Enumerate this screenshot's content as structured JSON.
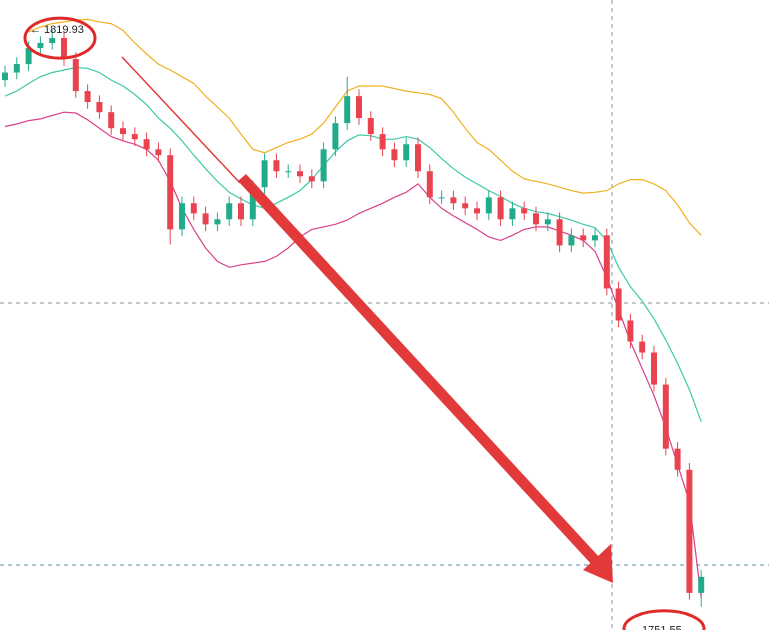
{
  "chart_data": {
    "type": "candlestick",
    "categories": [
      null,
      null,
      null,
      null,
      null,
      null,
      null,
      null,
      null,
      null,
      null,
      null,
      null,
      null,
      null,
      null,
      null,
      null,
      null,
      null,
      null,
      null,
      null,
      null,
      null,
      null,
      null,
      null,
      null,
      null,
      null,
      null,
      null,
      null,
      null,
      null,
      null,
      null,
      null,
      null,
      null,
      null,
      null,
      null,
      null,
      null,
      null,
      null,
      null,
      null,
      null,
      null,
      null,
      null,
      null,
      null,
      null,
      null,
      null,
      null
    ],
    "open": [
      1814.0,
      1814.9,
      1815.9,
      1817.8,
      1818.4,
      1819.0,
      1816.5,
      1812.7,
      1811.4,
      1810.2,
      1808.3,
      1807.6,
      1807.0,
      1805.8,
      1805.1,
      1796.3,
      1799.4,
      1798.2,
      1796.9,
      1797.5,
      1799.4,
      1797.5,
      1801.3,
      1804.5,
      1803.2,
      1803.2,
      1802.6,
      1802.0,
      1805.8,
      1808.9,
      1812.1,
      1809.5,
      1807.6,
      1805.8,
      1804.5,
      1806.4,
      1803.2,
      1800.1,
      1800.1,
      1799.4,
      1798.8,
      1798.2,
      1800.1,
      1797.5,
      1798.8,
      1798.2,
      1796.9,
      1797.5,
      1794.4,
      1795.6,
      1795.0,
      1795.6,
      1789.3,
      1785.5,
      1783.0,
      1781.7,
      1777.9,
      1770.3,
      1767.8,
      1753.2
    ],
    "high": [
      1815.7,
      1816.7,
      1818.6,
      1819.2,
      1819.93,
      1819.8,
      1817.3,
      1813.5,
      1812.2,
      1811.0,
      1809.1,
      1808.4,
      1807.8,
      1806.6,
      1805.9,
      1800.2,
      1800.2,
      1799.0,
      1798.3,
      1800.2,
      1800.2,
      1802.1,
      1805.3,
      1805.3,
      1804.0,
      1804.0,
      1803.4,
      1806.6,
      1809.7,
      1814.4,
      1812.9,
      1810.3,
      1808.4,
      1806.6,
      1807.2,
      1807.2,
      1804.0,
      1800.9,
      1800.9,
      1800.2,
      1799.6,
      1800.9,
      1800.9,
      1799.6,
      1799.6,
      1799.0,
      1798.3,
      1798.3,
      1796.4,
      1796.4,
      1796.4,
      1796.4,
      1790.1,
      1786.3,
      1783.8,
      1782.5,
      1778.7,
      1771.1,
      1768.6,
      1755.9
    ],
    "low": [
      1813.2,
      1814.1,
      1815.1,
      1817.0,
      1817.6,
      1815.7,
      1811.9,
      1810.6,
      1809.4,
      1807.5,
      1806.8,
      1806.2,
      1805.0,
      1804.3,
      1794.5,
      1795.5,
      1797.4,
      1796.1,
      1796.1,
      1796.7,
      1796.7,
      1796.7,
      1800.5,
      1802.4,
      1802.4,
      1801.8,
      1801.2,
      1801.2,
      1805.0,
      1808.1,
      1808.7,
      1806.8,
      1805.0,
      1803.7,
      1803.7,
      1802.4,
      1799.3,
      1799.3,
      1798.6,
      1798.0,
      1797.4,
      1797.4,
      1796.7,
      1796.7,
      1797.4,
      1796.1,
      1796.1,
      1793.6,
      1793.6,
      1794.2,
      1794.2,
      1788.5,
      1784.7,
      1782.2,
      1780.9,
      1777.1,
      1769.5,
      1767.0,
      1752.4,
      1751.55
    ],
    "close": [
      1814.9,
      1815.9,
      1817.8,
      1818.4,
      1819.0,
      1816.5,
      1812.7,
      1811.4,
      1810.2,
      1808.3,
      1807.6,
      1807.0,
      1805.8,
      1805.1,
      1796.3,
      1799.4,
      1798.2,
      1796.9,
      1797.5,
      1799.4,
      1797.5,
      1801.3,
      1804.5,
      1803.2,
      1803.2,
      1802.6,
      1802.0,
      1805.8,
      1808.9,
      1812.1,
      1809.5,
      1807.6,
      1805.8,
      1804.5,
      1806.4,
      1803.2,
      1800.1,
      1800.1,
      1799.4,
      1798.8,
      1798.2,
      1800.1,
      1797.5,
      1798.8,
      1798.2,
      1796.9,
      1797.5,
      1794.4,
      1795.6,
      1795.0,
      1795.6,
      1789.3,
      1785.5,
      1783.0,
      1781.7,
      1777.9,
      1770.3,
      1767.8,
      1753.2,
      1755.1
    ],
    "up_color": "#22ab8a",
    "down_color": "#e8434f",
    "lines": [
      {
        "color": "#f0b020",
        "values": [
          null,
          null,
          1819.7,
          1820.3,
          1820.7,
          1820.9,
          1821.1,
          1821.2,
          1820.9,
          1820.7,
          1819.9,
          1818.4,
          1817.1,
          1815.9,
          1815.2,
          1814.4,
          1813.6,
          1812.1,
          1810.8,
          1809.5,
          1807.6,
          1805.8,
          1805.4,
          1806.0,
          1806.6,
          1807.0,
          1807.6,
          1808.9,
          1810.8,
          1812.7,
          1813.3,
          1813.3,
          1813.3,
          1813.0,
          1812.7,
          1812.5,
          1812.3,
          1811.8,
          1810.2,
          1808.3,
          1806.6,
          1805.8,
          1804.5,
          1803.2,
          1802.3,
          1802.0,
          1801.7,
          1801.3,
          1800.9,
          1800.6,
          1800.7,
          1800.9,
          1801.7,
          1802.2,
          1802.2,
          1801.7,
          1800.9,
          1799.2,
          1797.1,
          1795.6
        ]
      },
      {
        "color": "#3cc9a8",
        "values": [
          1812.1,
          1812.7,
          1813.6,
          1814.4,
          1814.9,
          1815.2,
          1815.5,
          1815.4,
          1814.9,
          1814.0,
          1813.3,
          1812.3,
          1811.1,
          1809.5,
          1808.3,
          1806.8,
          1805.1,
          1803.5,
          1802.0,
          1800.7,
          1799.9,
          1799.2,
          1798.8,
          1799.4,
          1800.1,
          1800.9,
          1802.2,
          1803.9,
          1805.5,
          1806.8,
          1807.5,
          1807.4,
          1807.0,
          1807.0,
          1807.3,
          1807.0,
          1806.0,
          1804.7,
          1803.5,
          1802.5,
          1801.7,
          1800.9,
          1800.2,
          1799.4,
          1798.8,
          1798.4,
          1798.2,
          1797.8,
          1797.4,
          1796.9,
          1796.5,
          1795.0,
          1791.8,
          1789.5,
          1787.8,
          1785.7,
          1783.2,
          1780.4,
          1777.3,
          1773.5
        ]
      },
      {
        "color": "#d9408a",
        "values": [
          1808.5,
          1808.8,
          1809.2,
          1809.4,
          1809.8,
          1810.2,
          1810.1,
          1809.3,
          1808.3,
          1807.3,
          1806.8,
          1806.4,
          1805.8,
          1804.5,
          1802.0,
          1798.8,
          1796.3,
          1794.1,
          1792.5,
          1791.8,
          1792.1,
          1792.3,
          1792.5,
          1793.1,
          1794.1,
          1795.4,
          1796.3,
          1796.6,
          1796.9,
          1797.4,
          1798.2,
          1798.8,
          1799.4,
          1800.1,
          1800.7,
          1801.7,
          1800.1,
          1798.8,
          1797.9,
          1797.1,
          1796.3,
          1795.4,
          1795.0,
          1795.6,
          1796.3,
          1796.6,
          1796.6,
          1796.1,
          1795.6,
          1795.0,
          1793.7,
          1790.6,
          1786.8,
          1783.0,
          1779.8,
          1776.6,
          1772.8,
          1768.4,
          1764.0,
          1752.6
        ]
      }
    ],
    "ylim": [
      1748.8,
      1823.5
    ],
    "grid": false,
    "annotations": [
      {
        "value": 1819.93,
        "label": "← 1819.93"
      },
      {
        "value": 1751.55,
        "label": "1751.55 →"
      }
    ]
  }
}
